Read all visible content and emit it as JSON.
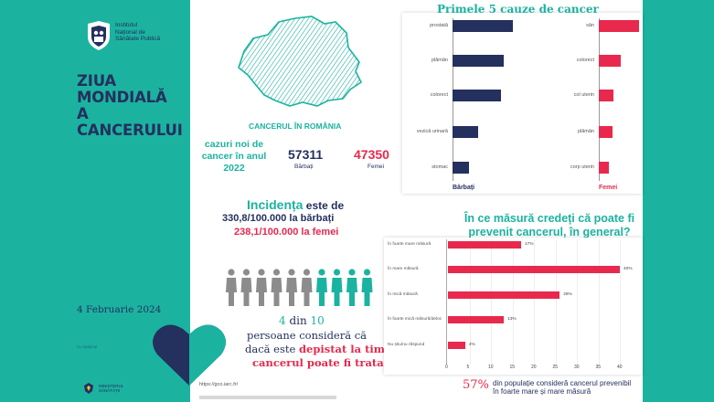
{
  "org": {
    "name_lines": [
      "Institutul",
      "Național de",
      "Sănătate Publică"
    ],
    "icon": "insp-shield-logo"
  },
  "title_lines": [
    "ZIUA",
    "MONDIALĂ",
    "A CANCERULUI"
  ],
  "date": "4 Februarie 2024",
  "sponsor_label": "Cu sprijinul",
  "ministry_lines": [
    "MINISTERUL",
    "SĂNĂTĂȚII"
  ],
  "romania": {
    "title": "CANCERUL ÎN ROMÂNIA",
    "cases_label_lines": [
      "cazuri noi de",
      "cancer în anul",
      "2022"
    ],
    "men_value": "57311",
    "men_label": "Bărbați",
    "women_value": "47350",
    "women_label": "Femei"
  },
  "incidence": {
    "word": "Incidența",
    "rest": " este de",
    "men_line": "330,8/100.000 la bărbați",
    "women_line": "238,1/100.000 la femei"
  },
  "people": {
    "total": 10,
    "highlighted": 4,
    "icon": "person-icon"
  },
  "quote": {
    "count": "4",
    "of": " din ",
    "total": "10",
    "line2": "persoane consideră că",
    "line3_plain": "dacă este ",
    "line3_red": "depistat la timp,",
    "line4": "cancerul poate fi tratat"
  },
  "source": "https://gco.iarc.fr/",
  "top_causes": {
    "title": "Primele 5 cauze de cancer",
    "men_label": "Bărbați",
    "women_label": "Femei",
    "men": [
      {
        "label": "prostată",
        "value": 100
      },
      {
        "label": "plămân",
        "value": 85
      },
      {
        "label": "colorect",
        "value": 80
      },
      {
        "label": "vezică urinară",
        "value": 43
      },
      {
        "label": "stomac",
        "value": 28
      }
    ],
    "women": [
      {
        "label": "sân",
        "value": 100
      },
      {
        "label": "colorect",
        "value": 55
      },
      {
        "label": "col uterin",
        "value": 37
      },
      {
        "label": "plămân",
        "value": 35
      },
      {
        "label": "corp uterin",
        "value": 25
      }
    ]
  },
  "prevention": {
    "title_lines": [
      "În ce măsură credeți că poate fi",
      "prevenit cancerul, în general?"
    ],
    "items": [
      {
        "label": "În foarte mare măsură",
        "value": 17,
        "display": "17%"
      },
      {
        "label": "În mare măsură",
        "value": 40,
        "display": "40%"
      },
      {
        "label": "În mică măsură",
        "value": 26,
        "display": "26%"
      },
      {
        "label": "În foarte mică măsură/deloc",
        "value": 13,
        "display": "13%"
      },
      {
        "label": "Nu știu/nu răspund",
        "value": 4,
        "display": "4%"
      }
    ],
    "ticks": [
      "0",
      "5",
      "10",
      "15",
      "20",
      "25",
      "30",
      "35",
      "40"
    ],
    "footer_pct": "57%",
    "footer_lines": [
      "din populație consideră cancerul prevenibil",
      "în foarte mare și mare măsură"
    ]
  },
  "colors": {
    "teal": "#1bb3a0",
    "navy": "#24305e",
    "red": "#e8294d"
  }
}
